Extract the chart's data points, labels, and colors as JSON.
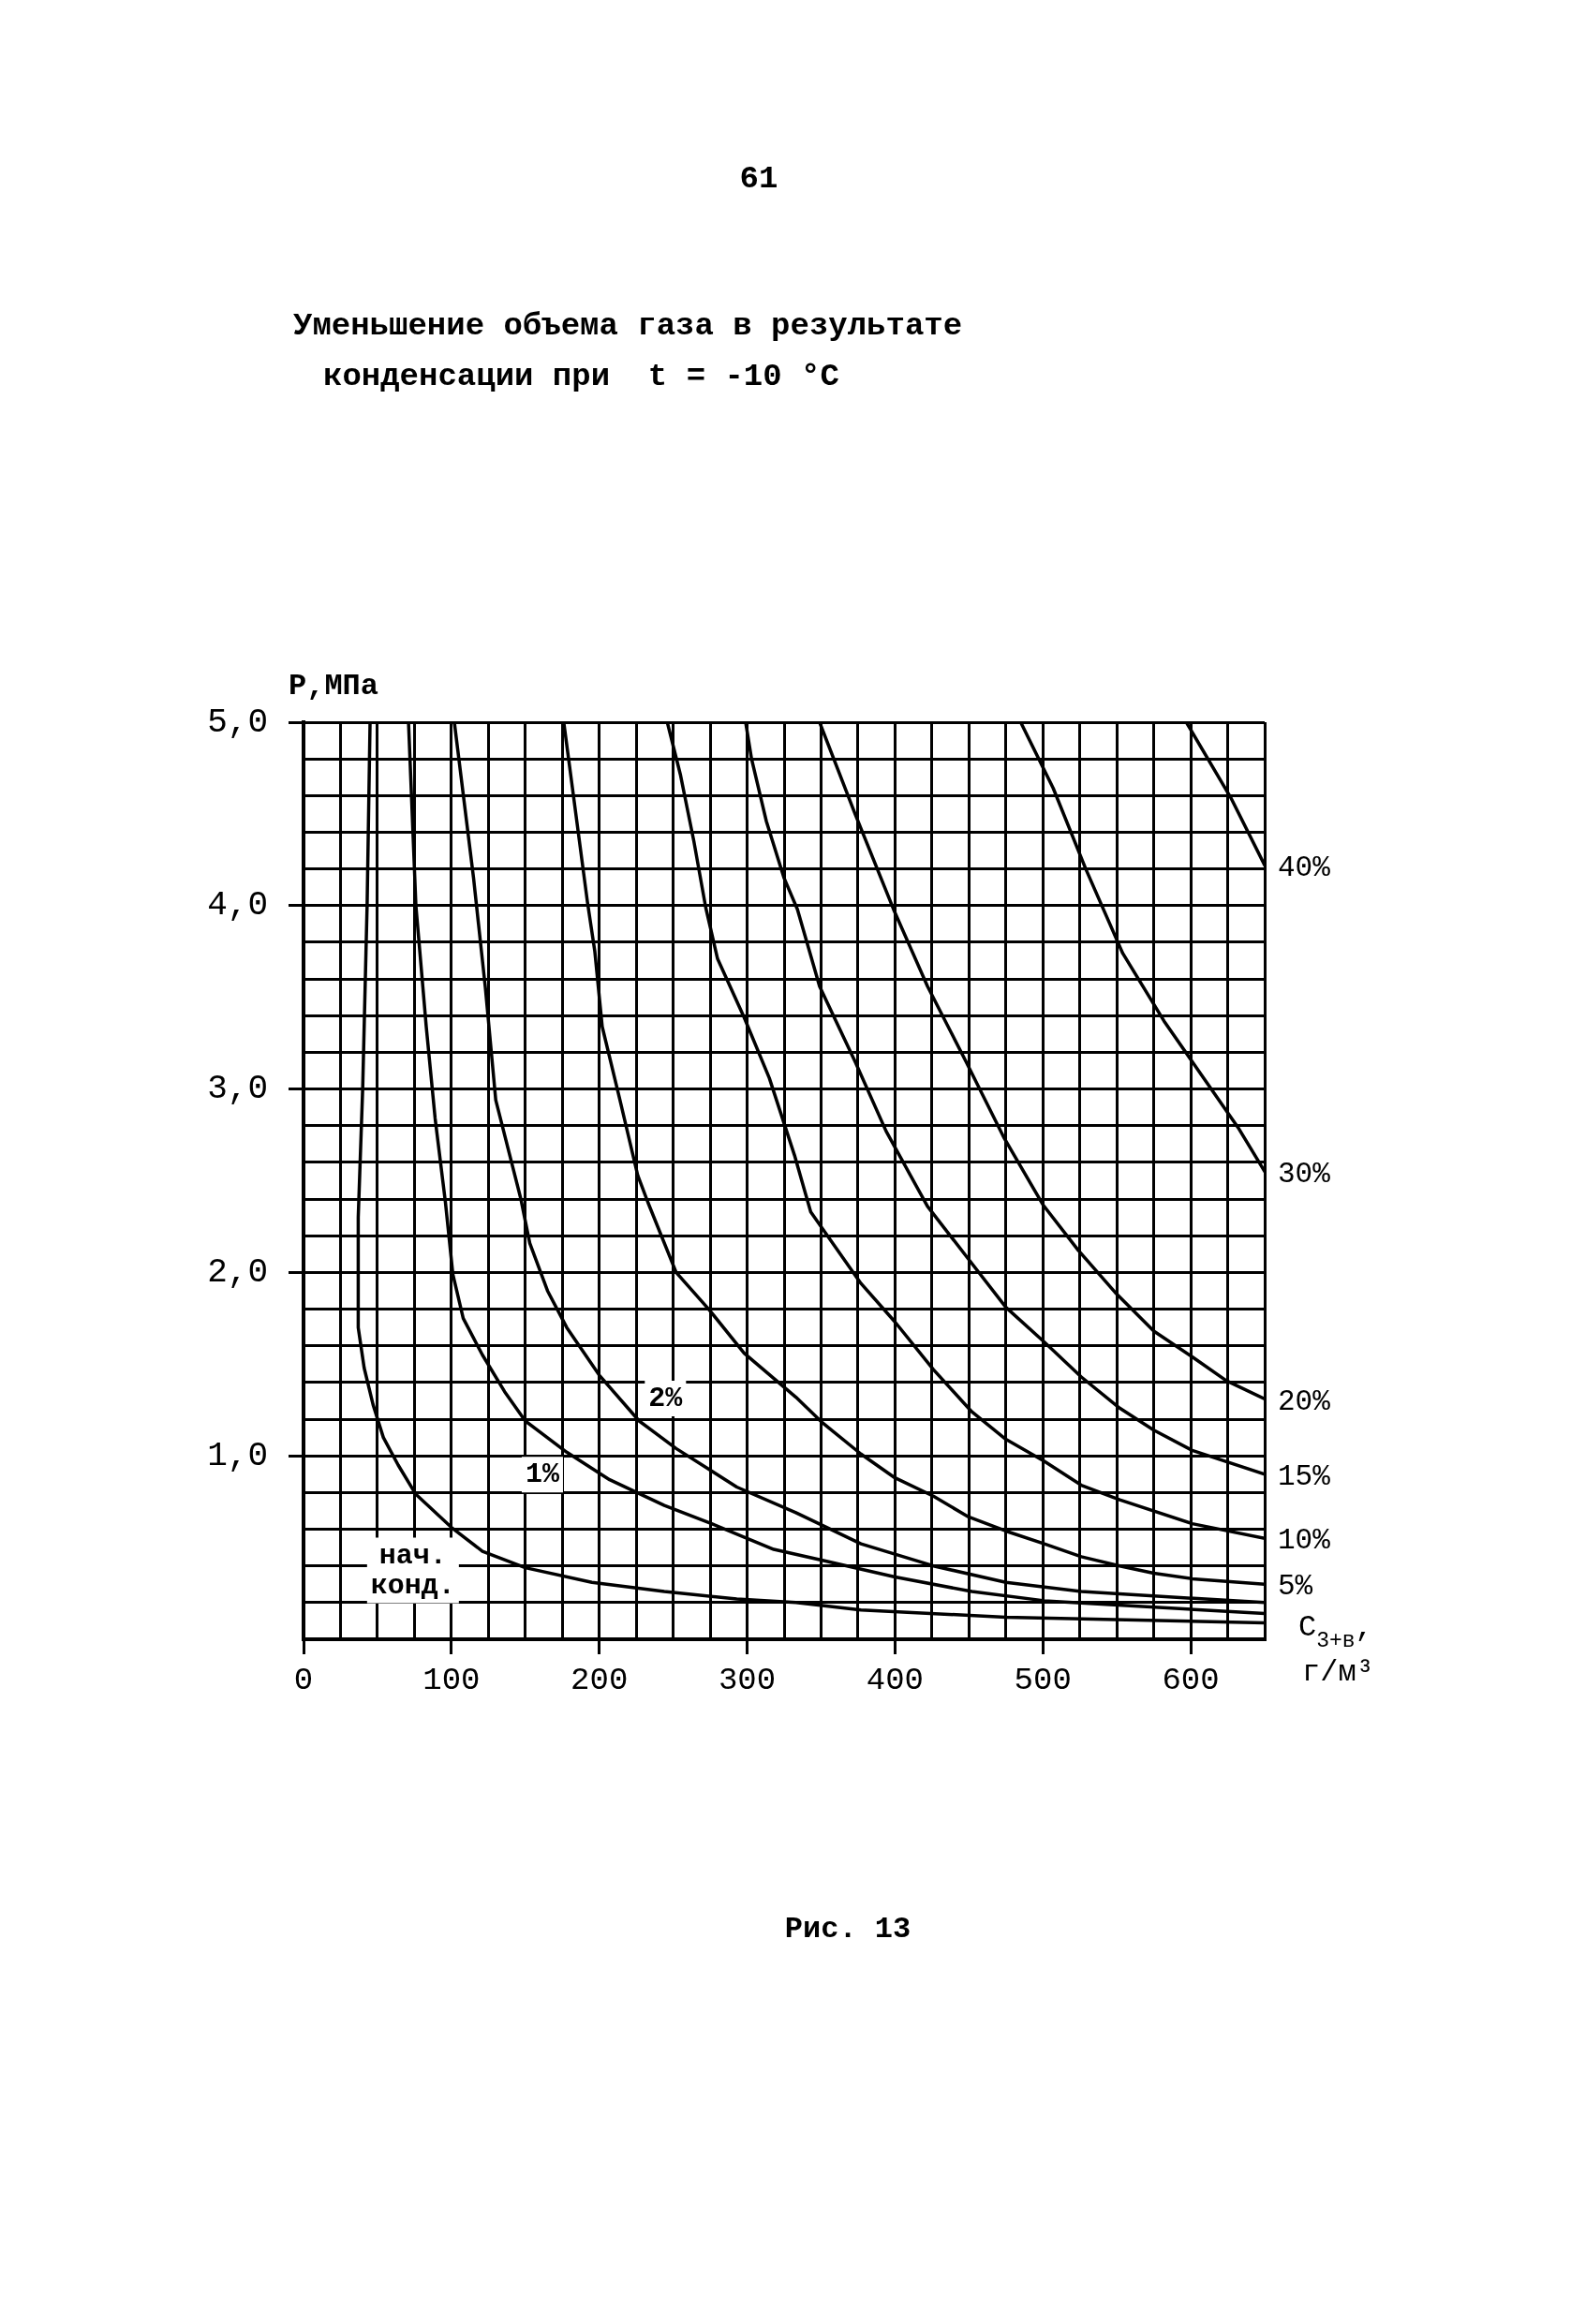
{
  "chart_data": {
    "type": "line",
    "title": "Уменьшение объема газа в результате\nконденсации при  t = -10 °C",
    "xlabel": "C$_{3+в}$,\nг/м³",
    "ylabel": "P,МПа",
    "annotations": [
      "61",
      "Рис. 13"
    ],
    "xlim": [
      0,
      650
    ],
    "ylim": [
      0,
      5
    ],
    "xticks": [
      0,
      {
        "value": 25,
        "label": null
      },
      {
        "value": 50,
        "label": null
      },
      {
        "value": 75,
        "label": null
      },
      100,
      {
        "value": 125,
        "label": null
      },
      {
        "value": 150,
        "label": null
      },
      {
        "value": 175,
        "label": null
      },
      200,
      {
        "value": 225,
        "label": null
      },
      {
        "value": 250,
        "label": null
      },
      {
        "value": 275,
        "label": null
      },
      300,
      {
        "value": 325,
        "label": null
      },
      {
        "value": 350,
        "label": null
      },
      {
        "value": 375,
        "label": null
      },
      400,
      {
        "value": 425,
        "label": null
      },
      {
        "value": 450,
        "label": null
      },
      {
        "value": 475,
        "label": null
      },
      500,
      {
        "value": 525,
        "label": null
      },
      {
        "value": 550,
        "label": null
      },
      {
        "value": 575,
        "label": null
      },
      600,
      {
        "value": 625,
        "label": null
      },
      {
        "value": 650,
        "label": null
      }
    ],
    "yticks": [
      {
        "value": 0,
        "label": null
      },
      {
        "value": 0.2,
        "label": null
      },
      {
        "value": 0.4,
        "label": null
      },
      {
        "value": 0.6,
        "label": null
      },
      {
        "value": 0.8,
        "label": null
      },
      {
        "value": 1,
        "label": "1,0"
      },
      {
        "value": 1.2,
        "label": null
      },
      {
        "value": 1.4,
        "label": null
      },
      {
        "value": 1.6,
        "label": null
      },
      {
        "value": 1.8,
        "label": null
      },
      {
        "value": 2,
        "label": "2,0"
      },
      {
        "value": 2.2,
        "label": null
      },
      {
        "value": 2.4,
        "label": null
      },
      {
        "value": 2.6,
        "label": null
      },
      {
        "value": 2.8,
        "label": null
      },
      {
        "value": 3,
        "label": "3,0"
      },
      {
        "value": 3.2,
        "label": null
      },
      {
        "value": 3.4,
        "label": null
      },
      {
        "value": 3.6,
        "label": null
      },
      {
        "value": 3.8,
        "label": null
      },
      {
        "value": 4,
        "label": "4,0"
      },
      {
        "value": 4.2,
        "label": null
      },
      {
        "value": 4.4,
        "label": null
      },
      {
        "value": 4.6,
        "label": null
      },
      {
        "value": 4.8,
        "label": null
      },
      {
        "value": 5,
        "label": "5,0"
      }
    ],
    "grid": true,
    "series": [
      {
        "name": "нач. конд.",
        "color": "#000000",
        "x": [
          45,
          43,
          40,
          37,
          37,
          41,
          47,
          54,
          64,
          76,
          100,
          121,
          150,
          195,
          244,
          293,
          333,
          377,
          475,
          650
        ],
        "values": [
          5.0,
          4.0,
          3.0,
          2.3,
          1.7,
          1.48,
          1.28,
          1.1,
          0.95,
          0.79,
          0.61,
          0.48,
          0.39,
          0.31,
          0.26,
          0.22,
          0.2,
          0.16,
          0.12,
          0.09
        ]
      },
      {
        "name": "1%",
        "color": "#000000",
        "x": [
          71,
          76,
          83,
          89,
          96,
          101,
          108,
          121,
          136,
          150,
          178,
          207,
          244,
          276,
          318,
          351,
          400,
          452,
          501,
          650
        ],
        "values": [
          5.0,
          4.0,
          3.34,
          2.84,
          2.38,
          1.99,
          1.75,
          1.55,
          1.35,
          1.19,
          1.02,
          0.87,
          0.73,
          0.63,
          0.49,
          0.43,
          0.34,
          0.26,
          0.21,
          0.14
        ]
      },
      {
        "name": "2%",
        "color": "#000000",
        "x": [
          102,
          115,
          123,
          130,
          147,
          153,
          165,
          178,
          200,
          227,
          252,
          293,
          333,
          377,
          426,
          475,
          526,
          650
        ],
        "values": [
          5.0,
          4.15,
          3.55,
          2.94,
          2.4,
          2.16,
          1.9,
          1.7,
          1.44,
          1.19,
          1.04,
          0.83,
          0.69,
          0.52,
          0.4,
          0.31,
          0.26,
          0.2
        ]
      },
      {
        "name": "5%",
        "color": "#000000",
        "x": [
          176,
          192,
          197,
          202,
          214,
          226,
          233,
          252,
          274,
          298,
          333,
          351,
          377,
          400,
          426,
          449,
          475,
          501,
          526,
          552,
          575,
          601,
          650
        ],
        "values": [
          5.0,
          4.02,
          3.75,
          3.34,
          2.94,
          2.53,
          2.38,
          2.0,
          1.8,
          1.56,
          1.32,
          1.18,
          1.01,
          0.88,
          0.78,
          0.67,
          0.59,
          0.52,
          0.45,
          0.4,
          0.36,
          0.33,
          0.3
        ]
      },
      {
        "name": "10%",
        "color": "#000000",
        "x": [
          246,
          255,
          264,
          272,
          280,
          298,
          315,
          332,
          343,
          377,
          400,
          426,
          452,
          475,
          501,
          526,
          552,
          601,
          650
        ],
        "values": [
          5.0,
          4.71,
          4.35,
          3.99,
          3.71,
          3.39,
          3.06,
          2.64,
          2.33,
          1.94,
          1.73,
          1.47,
          1.24,
          1.09,
          0.97,
          0.84,
          0.76,
          0.63,
          0.55
        ]
      },
      {
        "name": "15%",
        "color": "#000000",
        "x": [
          299,
          303,
          313,
          325,
          334,
          349,
          373,
          394,
          422,
          449,
          475,
          501,
          526,
          552,
          575,
          601,
          650
        ],
        "values": [
          5.0,
          4.8,
          4.46,
          4.15,
          3.98,
          3.56,
          3.15,
          2.77,
          2.36,
          2.08,
          1.81,
          1.62,
          1.43,
          1.26,
          1.14,
          1.03,
          0.9
        ]
      },
      {
        "name": "20%",
        "color": "#000000",
        "x": [
          349,
          373,
          399,
          422,
          448,
          474,
          500,
          524,
          549,
          575,
          601,
          624,
          650
        ],
        "values": [
          5.0,
          4.5,
          3.98,
          3.56,
          3.15,
          2.73,
          2.37,
          2.12,
          1.89,
          1.68,
          1.54,
          1.41,
          1.31
        ]
      },
      {
        "name": "30%",
        "color": "#000000",
        "x": [
          485,
          507,
          529,
          554,
          582,
          607,
          632,
          650
        ],
        "values": [
          5.0,
          4.64,
          4.2,
          3.74,
          3.37,
          3.08,
          2.79,
          2.55
        ]
      },
      {
        "name": "40%",
        "color": "#000000",
        "x": [
          597,
          627,
          650
        ],
        "values": [
          5.0,
          4.59,
          4.22
        ]
      }
    ]
  }
}
